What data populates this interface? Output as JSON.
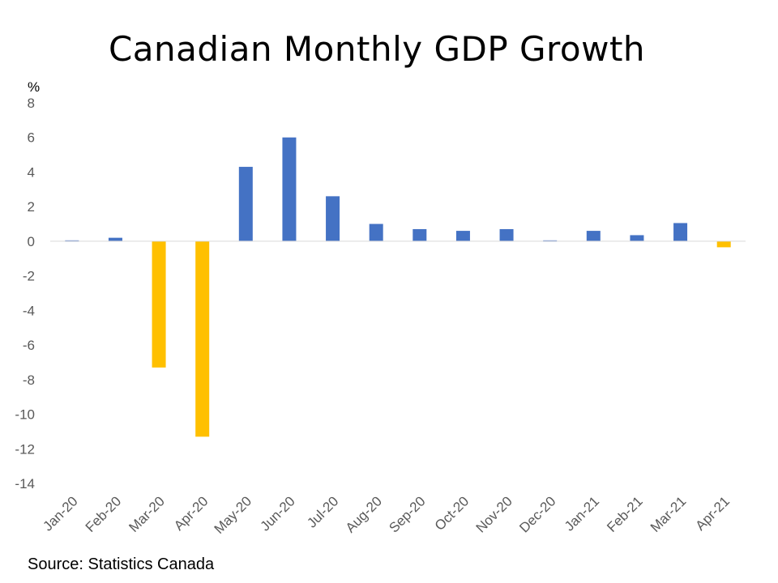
{
  "chart_data": {
    "type": "bar",
    "title": "Canadian Monthly GDP Growth",
    "unit_label": "%",
    "source": "Source: Statistics Canada",
    "categories": [
      "Jan-20",
      "Feb-20",
      "Mar-20",
      "Apr-20",
      "May-20",
      "Jun-20",
      "Jul-20",
      "Aug-20",
      "Sep-20",
      "Oct-20",
      "Nov-20",
      "Dec-20",
      "Jan-21",
      "Feb-21",
      "Mar-21",
      "Apr-21"
    ],
    "values": [
      0.05,
      0.2,
      -7.3,
      -11.3,
      4.3,
      6.0,
      2.6,
      1.0,
      0.7,
      0.6,
      0.7,
      0.05,
      0.6,
      0.35,
      1.05,
      -0.35
    ],
    "yticks": [
      "8",
      "6",
      "4",
      "2",
      "0",
      "-2",
      "-4",
      "-6",
      "-8",
      "-10",
      "-12",
      "-14"
    ],
    "ylim": [
      -14,
      8
    ],
    "grid": false,
    "colors": {
      "positive": "#4472C4",
      "negative": "#FFC000",
      "axis": "#D9D9D9"
    }
  }
}
